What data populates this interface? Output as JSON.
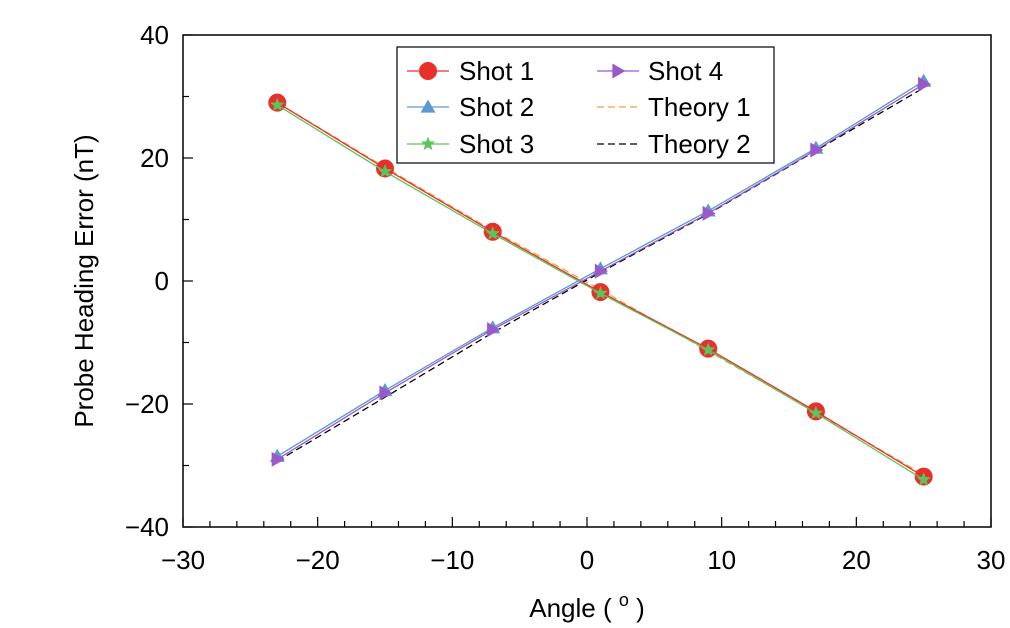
{
  "chart_data": {
    "type": "line",
    "title": "",
    "xlabel": "Angle ( ",
    "xlabel_sup": "o",
    "xlabel_close": " )",
    "ylabel": "Probe Heading Error (nT)",
    "xlim": [
      -30,
      30
    ],
    "ylim": [
      -40,
      40
    ],
    "xticks": [
      -30,
      -20,
      -10,
      0,
      10,
      20,
      30
    ],
    "yticks": [
      -40,
      -20,
      0,
      20,
      40
    ],
    "xtick_labels": [
      "−30",
      "−20",
      "−10",
      "0",
      "10",
      "20",
      "30"
    ],
    "ytick_labels": [
      "−40",
      "−20",
      "0",
      "20",
      "40"
    ],
    "grid": false,
    "legend_position": "top-center",
    "x": [
      -23,
      -15,
      -7,
      1,
      9,
      17,
      25
    ],
    "series": [
      {
        "name": "Shot 1",
        "values": [
          29,
          18.3,
          8,
          -1.8,
          -11,
          -21.2,
          -31.8
        ],
        "color": "#e8302a",
        "marker": "circle",
        "line": "solid"
      },
      {
        "name": "Shot 2",
        "values": [
          -28.5,
          -17.8,
          -7.6,
          2,
          11.4,
          21.6,
          32.5
        ],
        "color": "#5b9ad0",
        "marker": "triangle-up",
        "line": "solid"
      },
      {
        "name": "Shot 3",
        "values": [
          28.6,
          17.8,
          7.7,
          -2,
          -11.2,
          -21.5,
          -32.3
        ],
        "color": "#5cc45c",
        "marker": "star",
        "line": "solid"
      },
      {
        "name": "Shot 4",
        "values": [
          -29,
          -18.2,
          -7.9,
          1.6,
          11,
          21.3,
          32
        ],
        "color": "#9a58c8",
        "marker": "triangle-right",
        "line": "solid"
      },
      {
        "name": "Theory 1",
        "values": [
          29,
          18.5,
          8.2,
          -1.4,
          -11.4,
          -21.4,
          -31.5
        ],
        "color": "#f0a040",
        "marker": "none",
        "line": "dashed"
      },
      {
        "name": "Theory 2",
        "values": [
          -29.3,
          -18.9,
          -8.4,
          1.4,
          10.9,
          21.2,
          31.4
        ],
        "color": "#000000",
        "marker": "none",
        "line": "dashed"
      }
    ]
  }
}
